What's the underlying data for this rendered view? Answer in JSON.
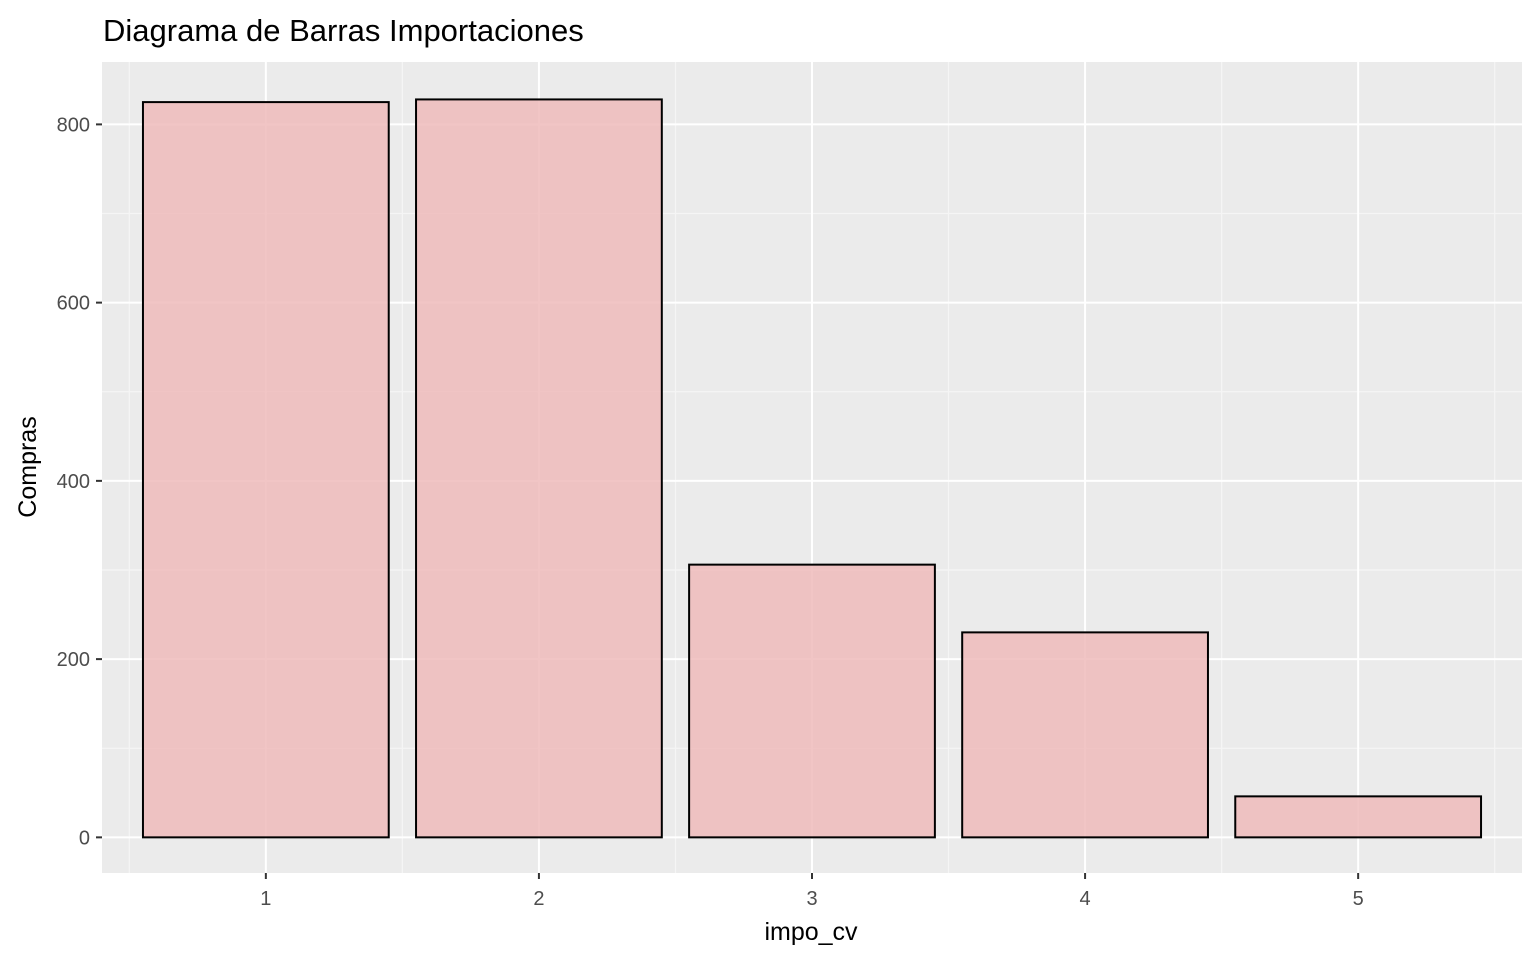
{
  "colors": {
    "panel_background": "#EBEBEB",
    "grid_major": "#FFFFFF",
    "grid_minor": "#F5F5F5",
    "bar_fill": "#EEBBBB",
    "bar_stroke": "#000000",
    "tick_text": "#4D4D4D",
    "tick_mark": "#333333"
  },
  "chart_data": {
    "type": "bar",
    "title": "Diagrama de Barras Importaciones",
    "xlabel": "impo_cv",
    "ylabel": "Compras",
    "categories": [
      "1",
      "2",
      "3",
      "4",
      "5"
    ],
    "values": [
      825,
      828,
      306,
      230,
      46
    ],
    "ylim": [
      -40,
      870
    ],
    "yticks": [
      0,
      200,
      400,
      600,
      800
    ],
    "yticklabels": [
      "0",
      "200",
      "400",
      "600",
      "800"
    ],
    "grid": true,
    "legend": "none"
  }
}
